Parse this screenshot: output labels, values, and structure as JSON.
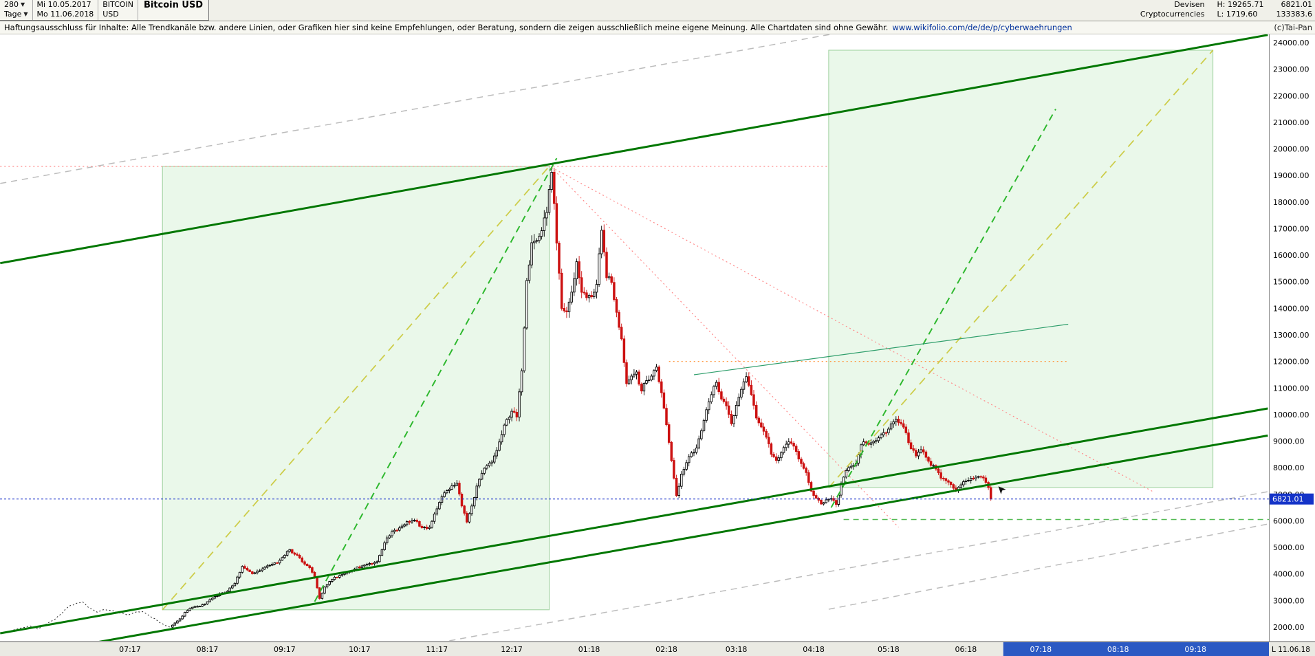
{
  "toolbar": {
    "period_value": "280",
    "period_unit": "Tage",
    "date_from": "Mi 10.05.2017",
    "date_to": "Mo 11.06.2018",
    "symbol_line1": "BITCOIN",
    "symbol_line2": "USD",
    "title": "Bitcoin USD",
    "category_line1": "Devisen",
    "category_line2": "Cryptocurrencies",
    "high_label": "H: 19265.71",
    "low_label": "L: 1719.60",
    "last_price": "6821.01",
    "volume": "133383.6"
  },
  "disclaimer": {
    "text": "Haftungsausschluss für Inhalte: Alle Trendkanäle bzw. andere Linien, oder Grafiken hier sind keine Empfehlungen, oder Beratung, sondern die zeigen ausschließlich meine eigene Meinung. Alle Chartdaten sind ohne Gewähr.",
    "link": "www.wikifolio.com/de/de/p/cyberwaehrungen",
    "copyright": "(c)Tai-Pan"
  },
  "chart_data": {
    "type": "candlestick",
    "instrument": "Bitcoin USD",
    "x_unit": "days since 2017-05-10",
    "y_axis": {
      "min": 2000,
      "max": 24000,
      "step": 1000,
      "decimals": 2
    },
    "x_ticks": [
      {
        "label": "07:17",
        "day": 52
      },
      {
        "label": "08:17",
        "day": 83
      },
      {
        "label": "09:17",
        "day": 114
      },
      {
        "label": "10:17",
        "day": 144
      },
      {
        "label": "11:17",
        "day": 175
      },
      {
        "label": "12:17",
        "day": 205
      },
      {
        "label": "01:18",
        "day": 236
      },
      {
        "label": "02:18",
        "day": 267
      },
      {
        "label": "03:18",
        "day": 295
      },
      {
        "label": "04:18",
        "day": 326
      },
      {
        "label": "05:18",
        "day": 356
      },
      {
        "label": "06:18",
        "day": 387
      },
      {
        "label": "07:18",
        "day": 417
      },
      {
        "label": "08:18",
        "day": 448
      },
      {
        "label": "09:18",
        "day": 479
      }
    ],
    "last_date_label": "L  11.06.18",
    "future_zone": {
      "start_day": 402,
      "color": "#2b59c3"
    },
    "high": 19265.71,
    "low": 1719.6,
    "last_close": 6821.01,
    "peak_day": 221,
    "candles_start_day": 69,
    "current_price_line": {
      "price": 6821.01,
      "color": "#1d33cc",
      "tag_bg": "#1433c8",
      "tag_text": "#ffffff"
    },
    "cursor_marker": {
      "day": 400,
      "price": 7300
    },
    "colors": {
      "up_fill": "#ffffff",
      "up_stroke": "#000000",
      "down_fill": "#cc1111",
      "down_stroke": "#cc1111",
      "pre_line": "#222222"
    },
    "close_keyframes": [
      [
        0,
        1762
      ],
      [
        3,
        1830
      ],
      [
        6,
        1905
      ],
      [
        9,
        1985
      ],
      [
        12,
        2045
      ],
      [
        15,
        1925
      ],
      [
        18,
        2085
      ],
      [
        21,
        2245
      ],
      [
        24,
        2465
      ],
      [
        27,
        2740
      ],
      [
        30,
        2880
      ],
      [
        33,
        2950
      ],
      [
        36,
        2705
      ],
      [
        39,
        2560
      ],
      [
        42,
        2665
      ],
      [
        45,
        2620
      ],
      [
        48,
        2530
      ],
      [
        51,
        2450
      ],
      [
        54,
        2555
      ],
      [
        57,
        2585
      ],
      [
        60,
        2415
      ],
      [
        63,
        2240
      ],
      [
        66,
        2060
      ],
      [
        68,
        1998
      ],
      [
        70,
        2155
      ],
      [
        72,
        2310
      ],
      [
        74,
        2560
      ],
      [
        76,
        2705
      ],
      [
        79,
        2780
      ],
      [
        82,
        2872
      ],
      [
        85,
        3090
      ],
      [
        88,
        3255
      ],
      [
        91,
        3345
      ],
      [
        94,
        3650
      ],
      [
        97,
        4285
      ],
      [
        99,
        4150
      ],
      [
        101,
        4010
      ],
      [
        103,
        4105
      ],
      [
        105,
        4190
      ],
      [
        108,
        4330
      ],
      [
        111,
        4415
      ],
      [
        114,
        4705
      ],
      [
        116,
        4920
      ],
      [
        118,
        4740
      ],
      [
        120,
        4605
      ],
      [
        122,
        4370
      ],
      [
        124,
        4240
      ],
      [
        126,
        3870
      ],
      [
        128,
        3080
      ],
      [
        130,
        3510
      ],
      [
        132,
        3720
      ],
      [
        134,
        3880
      ],
      [
        136,
        3940
      ],
      [
        139,
        4065
      ],
      [
        142,
        4190
      ],
      [
        145,
        4305
      ],
      [
        148,
        4395
      ],
      [
        151,
        4465
      ],
      [
        154,
        5175
      ],
      [
        157,
        5595
      ],
      [
        160,
        5735
      ],
      [
        163,
        5975
      ],
      [
        166,
        6025
      ],
      [
        169,
        5740
      ],
      [
        172,
        5755
      ],
      [
        175,
        6455
      ],
      [
        178,
        7055
      ],
      [
        181,
        7315
      ],
      [
        183,
        7420
      ],
      [
        185,
        6560
      ],
      [
        187,
        5955
      ],
      [
        189,
        6560
      ],
      [
        191,
        7310
      ],
      [
        193,
        7790
      ],
      [
        195,
        8075
      ],
      [
        197,
        8210
      ],
      [
        199,
        8650
      ],
      [
        201,
        9250
      ],
      [
        203,
        9815
      ],
      [
        205,
        10125
      ],
      [
        207,
        9905
      ],
      [
        209,
        11650
      ],
      [
        211,
        15050
      ],
      [
        213,
        16470
      ],
      [
        215,
        16550
      ],
      [
        217,
        16920
      ],
      [
        219,
        17610
      ],
      [
        221,
        19120
      ],
      [
        223,
        16455
      ],
      [
        225,
        14000
      ],
      [
        227,
        13865
      ],
      [
        229,
        14610
      ],
      [
        231,
        15755
      ],
      [
        233,
        14605
      ],
      [
        235,
        14400
      ],
      [
        237,
        14435
      ],
      [
        239,
        14900
      ],
      [
        241,
        16940
      ],
      [
        243,
        15150
      ],
      [
        245,
        14975
      ],
      [
        247,
        13850
      ],
      [
        249,
        12850
      ],
      [
        251,
        11165
      ],
      [
        253,
        11450
      ],
      [
        255,
        11605
      ],
      [
        257,
        10885
      ],
      [
        259,
        11280
      ],
      [
        261,
        11450
      ],
      [
        263,
        11790
      ],
      [
        265,
        10820
      ],
      [
        267,
        9620
      ],
      [
        269,
        8275
      ],
      [
        271,
        6955
      ],
      [
        273,
        7760
      ],
      [
        275,
        8190
      ],
      [
        277,
        8555
      ],
      [
        279,
        8745
      ],
      [
        281,
        9395
      ],
      [
        283,
        10185
      ],
      [
        285,
        10750
      ],
      [
        287,
        11215
      ],
      [
        289,
        10585
      ],
      [
        291,
        10330
      ],
      [
        293,
        9655
      ],
      [
        295,
        10350
      ],
      [
        297,
        10950
      ],
      [
        299,
        11430
      ],
      [
        301,
        10750
      ],
      [
        303,
        9870
      ],
      [
        305,
        9535
      ],
      [
        307,
        9150
      ],
      [
        309,
        8505
      ],
      [
        311,
        8275
      ],
      [
        313,
        8570
      ],
      [
        315,
        8885
      ],
      [
        317,
        8920
      ],
      [
        319,
        8610
      ],
      [
        321,
        8155
      ],
      [
        323,
        7815
      ],
      [
        325,
        7120
      ],
      [
        327,
        6855
      ],
      [
        329,
        6635
      ],
      [
        331,
        6790
      ],
      [
        333,
        6845
      ],
      [
        335,
        6620
      ],
      [
        337,
        7415
      ],
      [
        339,
        7890
      ],
      [
        341,
        8055
      ],
      [
        343,
        8170
      ],
      [
        345,
        8865
      ],
      [
        347,
        8935
      ],
      [
        349,
        8940
      ],
      [
        351,
        9020
      ],
      [
        353,
        9235
      ],
      [
        355,
        9315
      ],
      [
        357,
        9650
      ],
      [
        359,
        9830
      ],
      [
        361,
        9655
      ],
      [
        363,
        9315
      ],
      [
        365,
        8715
      ],
      [
        367,
        8445
      ],
      [
        369,
        8680
      ],
      [
        371,
        8390
      ],
      [
        373,
        8085
      ],
      [
        375,
        7950
      ],
      [
        377,
        7605
      ],
      [
        379,
        7510
      ],
      [
        381,
        7365
      ],
      [
        383,
        7130
      ],
      [
        385,
        7355
      ],
      [
        387,
        7500
      ],
      [
        389,
        7605
      ],
      [
        391,
        7640
      ],
      [
        393,
        7655
      ],
      [
        395,
        7445
      ],
      [
        396,
        7255
      ],
      [
        397,
        6821.01
      ]
    ],
    "rectangles": [
      {
        "name": "projection-box-1",
        "d1": 65,
        "d2": 220,
        "p_top": 19340,
        "p_bottom": 2650,
        "fill": "rgba(170,228,170,0.25)",
        "stroke": "#9ccf9c"
      },
      {
        "name": "projection-box-2",
        "d1": 332,
        "d2": 486,
        "p_top": 23715,
        "p_bottom": 7250,
        "fill": "rgba(170,228,170,0.25)",
        "stroke": "#9ccf9c"
      }
    ],
    "trendlines": [
      {
        "name": "gray-dashed-upper",
        "color": "#bcbcbc",
        "width": 1.5,
        "dash": "9 7",
        "d1": 0,
        "p1": 18700,
        "d2": 508,
        "p2": 27270
      },
      {
        "name": "gray-dashed-lower-1",
        "color": "#bcbcbc",
        "width": 1.5,
        "dash": "9 7",
        "d1": 180,
        "p1": 1485,
        "d2": 508,
        "p2": 7100
      },
      {
        "name": "gray-dashed-lower-2",
        "color": "#bcbcbc",
        "width": 1.5,
        "dash": "9 7",
        "d1": 332,
        "p1": 2674,
        "d2": 508,
        "p2": 5880
      },
      {
        "name": "box1-diagonal-yellow",
        "color": "#cdcd4a",
        "width": 1.8,
        "dash": "12 8",
        "d1": 65,
        "p1": 2650,
        "d2": 220,
        "p2": 19340
      },
      {
        "name": "box2-diagonal-yellow",
        "color": "#cdcd4a",
        "width": 1.8,
        "dash": "12 8",
        "d1": 332,
        "p1": 7250,
        "d2": 486,
        "p2": 23715
      },
      {
        "name": "red-dotted-peak-level",
        "color": "#ff8a8a",
        "width": 1.2,
        "dash": "2 4",
        "d1": 0,
        "p1": 19342,
        "d2": 332,
        "p2": 19342
      },
      {
        "name": "red-dotted-fan-1",
        "color": "#ff8a8a",
        "width": 1.2,
        "dash": "2 4",
        "d1": 221,
        "p1": 19300,
        "d2": 360,
        "p2": 5760
      },
      {
        "name": "red-dotted-fan-2",
        "color": "#ff8a8a",
        "width": 1.2,
        "dash": "2 4",
        "d1": 221,
        "p1": 19300,
        "d2": 462,
        "p2": 7100
      },
      {
        "name": "orange-dotted-12000",
        "color": "#ff9944",
        "width": 1.2,
        "dash": "2 4",
        "d1": 268,
        "p1": 12000,
        "d2": 428,
        "p2": 12000
      },
      {
        "name": "green-dashed-steep-1",
        "color": "#2eb82e",
        "width": 2,
        "dash": "10 7",
        "d1": 126,
        "p1": 2960,
        "d2": 223,
        "p2": 19650
      },
      {
        "name": "green-dashed-steep-2",
        "color": "#2eb82e",
        "width": 2,
        "dash": "10 7",
        "d1": 333,
        "p1": 6500,
        "d2": 423,
        "p2": 21500
      },
      {
        "name": "green-thin-resistance",
        "color": "#2e9e6b",
        "width": 1.2,
        "dash": null,
        "d1": 278,
        "p1": 11500,
        "d2": 428,
        "p2": 13400
      },
      {
        "name": "green-dashed-6050-level",
        "color": "#55bb55",
        "width": 1.5,
        "dash": "8 6",
        "d1": 338,
        "p1": 6050,
        "d2": 509,
        "p2": 6050
      },
      {
        "name": "upper-channel-line",
        "color": "#007700",
        "width": 3,
        "dash": null,
        "d1": 0,
        "p1": 15700,
        "d2": 508,
        "p2": 24290
      },
      {
        "name": "lower-channel-line",
        "color": "#007700",
        "width": 3,
        "dash": null,
        "d1": 0,
        "p1": 1768,
        "d2": 508,
        "p2": 10230
      },
      {
        "name": "bottom-channel-line",
        "color": "#007700",
        "width": 3,
        "dash": null,
        "d1": 0,
        "p1": 790,
        "d2": 508,
        "p2": 9210
      }
    ]
  }
}
